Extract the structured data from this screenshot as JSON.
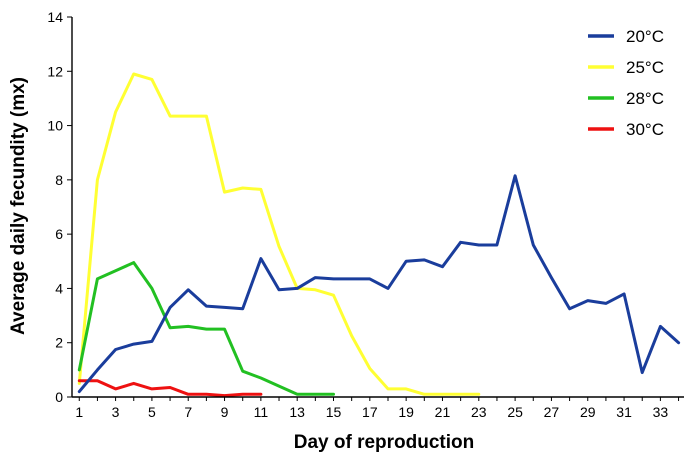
{
  "chart_data": {
    "type": "line",
    "title": "",
    "xlabel": "Day of reproduction",
    "ylabel": "Average daily fecundity (mx)",
    "xlim": [
      0.6,
      34.3
    ],
    "ylim": [
      0,
      14
    ],
    "x_ticks": [
      1,
      3,
      5,
      7,
      9,
      11,
      13,
      15,
      17,
      19,
      21,
      23,
      25,
      27,
      29,
      31,
      33
    ],
    "y_ticks": [
      0,
      2,
      4,
      6,
      8,
      10,
      12,
      14
    ],
    "legend_position": "top-right",
    "grid": false,
    "series": [
      {
        "name": "20°C",
        "color": "#1a3d9c",
        "x": [
          1,
          2,
          3,
          4,
          5,
          6,
          7,
          8,
          9,
          10,
          11,
          12,
          13,
          14,
          15,
          16,
          17,
          18,
          19,
          20,
          21,
          22,
          23,
          24,
          25,
          26,
          27,
          28,
          29,
          30,
          31,
          32,
          33,
          34
        ],
        "values": [
          0.2,
          1.0,
          1.75,
          1.95,
          2.05,
          3.3,
          3.95,
          3.35,
          3.3,
          3.25,
          5.1,
          3.95,
          4.0,
          4.4,
          4.35,
          4.35,
          4.35,
          4.0,
          5.0,
          5.05,
          4.8,
          5.7,
          5.6,
          5.6,
          8.15,
          5.6,
          4.4,
          3.25,
          3.55,
          3.45,
          3.8,
          0.9,
          2.6,
          2.0
        ]
      },
      {
        "name": "25°C",
        "color": "#ffff33",
        "x": [
          1,
          2,
          3,
          4,
          5,
          6,
          7,
          8,
          9,
          10,
          11,
          12,
          13,
          14,
          15,
          16,
          17,
          18,
          19,
          20,
          21,
          22,
          23
        ],
        "values": [
          0.5,
          8.0,
          10.5,
          11.9,
          11.7,
          10.35,
          10.35,
          10.35,
          7.55,
          7.7,
          7.65,
          5.55,
          4.0,
          3.95,
          3.75,
          2.25,
          1.05,
          0.3,
          0.3,
          0.1,
          0.1,
          0.1,
          0.1
        ]
      },
      {
        "name": "28°C",
        "color": "#22c022",
        "x": [
          1,
          2,
          3,
          4,
          5,
          6,
          7,
          8,
          9,
          10,
          11,
          12,
          13,
          14,
          15
        ],
        "values": [
          1.0,
          4.35,
          4.65,
          4.95,
          4.0,
          2.55,
          2.6,
          2.5,
          2.5,
          0.95,
          0.7,
          0.4,
          0.1,
          0.1,
          0.1
        ]
      },
      {
        "name": "30°C",
        "color": "#ee1111",
        "x": [
          1,
          2,
          3,
          4,
          5,
          6,
          7,
          8,
          9,
          10,
          11
        ],
        "values": [
          0.6,
          0.6,
          0.3,
          0.5,
          0.3,
          0.35,
          0.1,
          0.1,
          0.05,
          0.1,
          0.1
        ]
      }
    ]
  }
}
